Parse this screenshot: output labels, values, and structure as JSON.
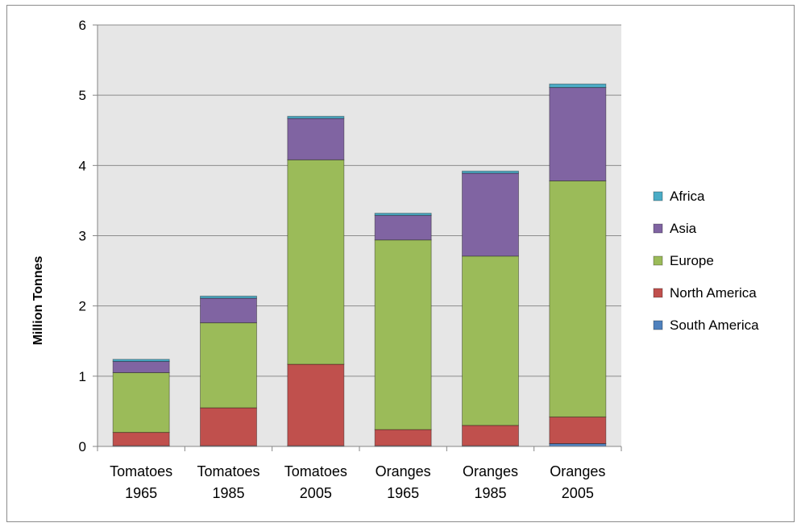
{
  "chart_data": {
    "type": "bar",
    "stacked": true,
    "ylabel": "Million Tonnes",
    "xlabel": "",
    "title": "",
    "ylim": [
      0,
      6
    ],
    "yticks": [
      0,
      1,
      2,
      3,
      4,
      5,
      6
    ],
    "grid": true,
    "legend_position": "right",
    "categories": [
      [
        "Tomatoes",
        "1965"
      ],
      [
        "Tomatoes",
        "1985"
      ],
      [
        "Tomatoes",
        "2005"
      ],
      [
        "Oranges",
        "1965"
      ],
      [
        "Oranges",
        "1985"
      ],
      [
        "Oranges",
        "2005"
      ]
    ],
    "series": [
      {
        "name": "South America",
        "color": "#4f81bd",
        "values": [
          0.01,
          0.01,
          0.01,
          0.01,
          0.01,
          0.04
        ]
      },
      {
        "name": "North America",
        "color": "#c0504d",
        "values": [
          0.19,
          0.54,
          1.16,
          0.23,
          0.29,
          0.38
        ]
      },
      {
        "name": "Europe",
        "color": "#9bbb59",
        "values": [
          0.85,
          1.21,
          2.91,
          2.7,
          2.41,
          3.36
        ]
      },
      {
        "name": "Asia",
        "color": "#8064a2",
        "values": [
          0.16,
          0.35,
          0.59,
          0.35,
          1.18,
          1.33
        ]
      },
      {
        "name": "Africa",
        "color": "#4bacc6",
        "values": [
          0.03,
          0.03,
          0.03,
          0.03,
          0.03,
          0.05
        ]
      }
    ]
  }
}
